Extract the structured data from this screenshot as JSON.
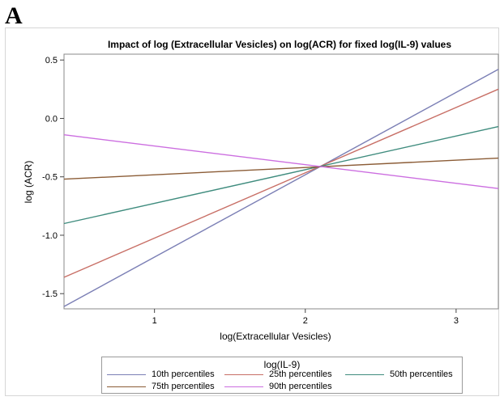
{
  "panel_label": "A",
  "chart_data": {
    "type": "line",
    "title": "Impact of log (Extracellular Vesicles) on log(ACR) for fixed log(IL-9) values",
    "xlabel": "log(Extracellular Vesicles)",
    "ylabel": "log (ACR)",
    "xlim": [
      0.4,
      3.28
    ],
    "ylim": [
      -1.63,
      0.55
    ],
    "xticks": [
      1,
      2,
      3
    ],
    "xtick_labels": [
      "1",
      "2",
      "3"
    ],
    "yticks": [
      -1.5,
      -1.0,
      -0.5,
      0.0,
      0.5
    ],
    "ytick_labels": [
      "-1.5",
      "-1.0",
      "-0.5",
      "0.0",
      "0.5"
    ],
    "grid": false,
    "legend_title": "log(IL-9)",
    "legend_position": "bottom",
    "series": [
      {
        "name": "10th percentiles",
        "color": "#7b7fb5",
        "x": [
          0.4,
          3.28
        ],
        "y": [
          -1.61,
          0.42
        ]
      },
      {
        "name": "25th percentiles",
        "color": "#c86f66",
        "x": [
          0.4,
          3.28
        ],
        "y": [
          -1.36,
          0.25
        ]
      },
      {
        "name": "50th percentiles",
        "color": "#3f8c7e",
        "x": [
          0.4,
          3.28
        ],
        "y": [
          -0.9,
          -0.07
        ]
      },
      {
        "name": "75th percentiles",
        "color": "#8b5c36",
        "x": [
          0.4,
          3.28
        ],
        "y": [
          -0.52,
          -0.34
        ]
      },
      {
        "name": "90th percentiles",
        "color": "#cc6ee0",
        "x": [
          0.4,
          3.28
        ],
        "y": [
          -0.14,
          -0.6
        ]
      }
    ]
  }
}
